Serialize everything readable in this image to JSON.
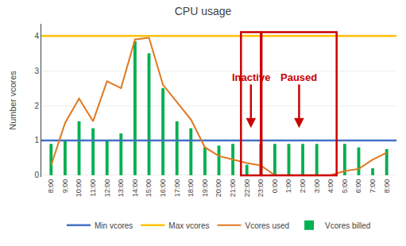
{
  "chart_data": {
    "type": "bar",
    "title": "CPU usage",
    "ylabel": "Number vcores",
    "categories": [
      "8:00",
      "9:00",
      "10:00",
      "11:00",
      "12:00",
      "13:00",
      "14:00",
      "15:00",
      "16:00",
      "17:00",
      "18:00",
      "19:00",
      "20:00",
      "21:00",
      "22:00",
      "23:00",
      "0:00",
      "1:00",
      "2:00",
      "3:00",
      "4:00",
      "5:00",
      "6:00",
      "7:00",
      "8:00"
    ],
    "series": [
      {
        "name": "Min vcores",
        "type": "hline",
        "color": "#4472c4",
        "value": 1
      },
      {
        "name": "Max vcores",
        "type": "hline",
        "color": "#ffc000",
        "value": 4
      },
      {
        "name": "Vcores used",
        "type": "line",
        "color": "#e07820",
        "values": [
          0.28,
          1.5,
          2.2,
          1.55,
          2.7,
          2.5,
          3.9,
          3.95,
          2.6,
          2.1,
          1.6,
          0.8,
          0.55,
          0.45,
          0.35,
          0.28,
          0.0,
          0.0,
          0.0,
          0.0,
          0.0,
          0.12,
          0.18,
          0.45,
          0.65
        ]
      },
      {
        "name": "Vcores billed",
        "type": "bar",
        "color": "#00b050",
        "values": [
          0.9,
          1.0,
          1.55,
          1.35,
          1.0,
          1.2,
          3.85,
          3.5,
          2.5,
          1.55,
          1.35,
          0.8,
          0.85,
          0.9,
          0.3,
          0.9,
          0.9,
          0.9,
          0.9,
          0.9,
          0.0,
          0.9,
          0.8,
          0.2,
          0.75
        ]
      }
    ],
    "ylim": [
      -0.05,
      4.35
    ],
    "yticks": [
      0,
      1,
      2,
      3,
      4
    ],
    "grid": true,
    "legend": "bottom",
    "annotations": [
      {
        "text": "Inactive",
        "color": "#cc0000",
        "span": [
          "22:00",
          "23:00"
        ]
      },
      {
        "text": "Paused",
        "color": "#cc0000",
        "span": [
          "23:00",
          "4:00"
        ]
      }
    ]
  }
}
